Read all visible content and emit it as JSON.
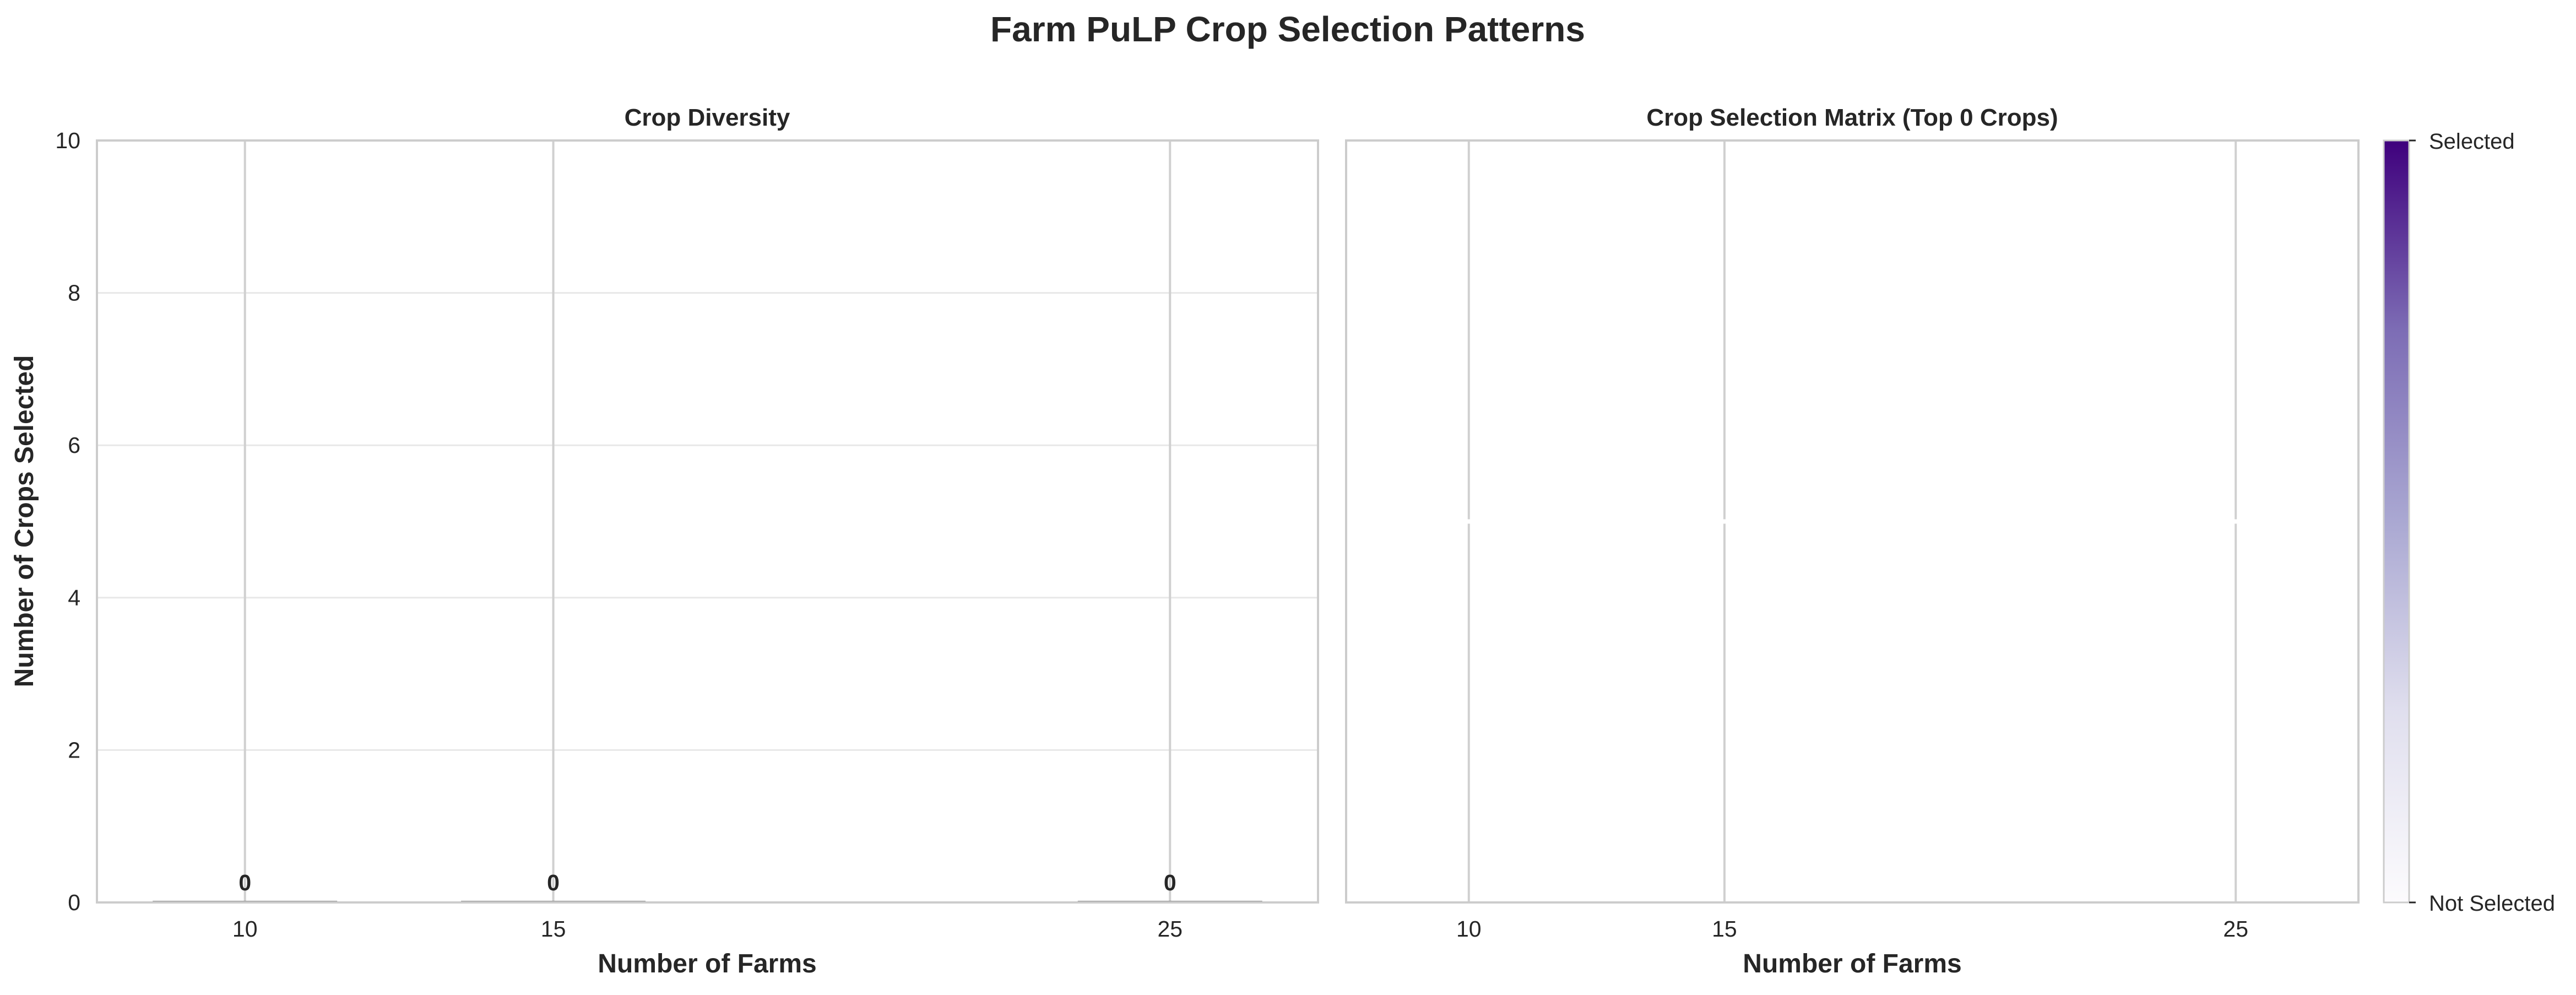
{
  "figure": {
    "title": "Farm PuLP Crop Selection Patterns"
  },
  "colors": {
    "frame": "#cccccc",
    "grid_major": "#e8e8e8",
    "grid_vertical": "#d0d0d0",
    "bar": "#7a7a7a",
    "colormap_low": "#fcfbfd",
    "colormap_high": "#3f007d"
  },
  "chart_data": [
    {
      "type": "bar",
      "title": "Crop Diversity",
      "xlabel": "Number of Farms",
      "ylabel": "Number of Crops Selected",
      "x": [
        10,
        15,
        25
      ],
      "x_tick_labels": [
        "10",
        "15",
        "25"
      ],
      "values": [
        0,
        0,
        0
      ],
      "bar_labels": [
        "0",
        "0",
        "0"
      ],
      "xlim": [
        7.6,
        27.4
      ],
      "ylim": [
        0,
        10
      ],
      "y_ticks": [
        0,
        2,
        4,
        6,
        8,
        10
      ],
      "y_tick_labels": [
        "0",
        "2",
        "4",
        "6",
        "8",
        "10"
      ],
      "grid": true
    },
    {
      "type": "heatmap",
      "title": "Crop Selection Matrix (Top 0 Crops)",
      "xlabel": "Number of Farms",
      "ylabel": "",
      "x": [
        10,
        15,
        25
      ],
      "x_tick_labels": [
        "10",
        "15",
        "25"
      ],
      "rows": [],
      "matrix": [],
      "xlim": [
        7.6,
        27.4
      ],
      "grid": true,
      "colorbar": {
        "labels": [
          "Not Selected",
          "Selected"
        ],
        "range": [
          0,
          1
        ],
        "colormap": "Purples"
      }
    }
  ]
}
